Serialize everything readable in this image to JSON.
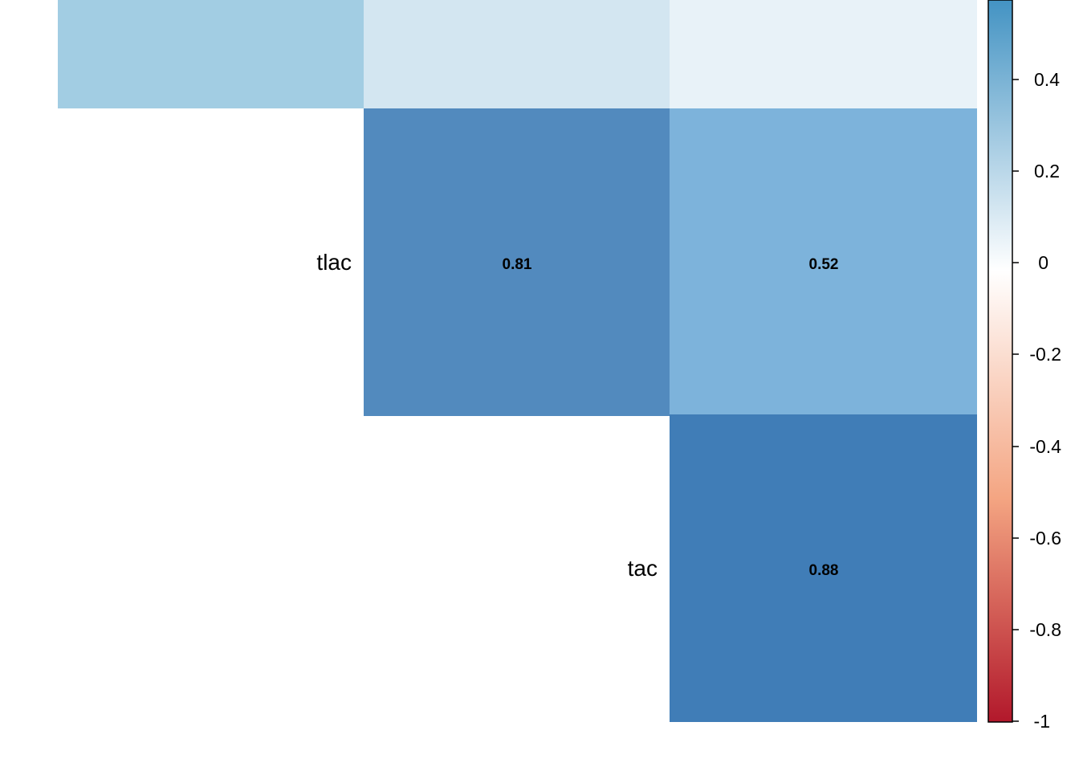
{
  "chart_data": {
    "type": "heatmap",
    "row_labels": [
      "tlac",
      "tac"
    ],
    "top_row_partial": [
      {
        "value": 0.35,
        "label": ""
      },
      {
        "value": 0.19,
        "label": ""
      },
      {
        "value": 0.1,
        "label": ""
      }
    ],
    "cells": [
      {
        "row": "tlac",
        "value": 0.81,
        "label": "0.81"
      },
      {
        "row": "tlac",
        "value": 0.52,
        "label": "0.52"
      },
      {
        "row": "tac",
        "value": 0.88,
        "label": "0.88"
      }
    ],
    "colorbar": {
      "range": [
        -1,
        0.6
      ],
      "ticks": [
        "0.4",
        "0.2",
        "0",
        "-0.2",
        "-0.4",
        "-0.6",
        "-0.8",
        "-1"
      ],
      "tick_values": [
        0.4,
        0.2,
        0,
        -0.2,
        -0.4,
        -0.6,
        -0.8,
        -1
      ],
      "colors": {
        "negative": "#b2182b",
        "zero": "#ffffff",
        "positive": "#2166ac"
      }
    }
  }
}
